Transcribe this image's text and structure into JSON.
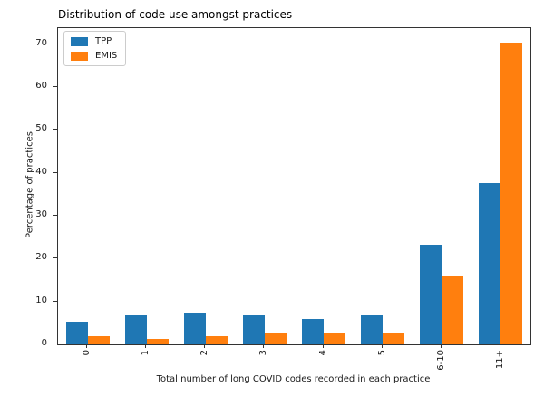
{
  "chart_data": {
    "type": "bar",
    "title": "Distribution of code use amongst practices",
    "xlabel": "Total number of long COVID codes recorded in each practice",
    "ylabel": "Percentage of practices",
    "categories": [
      "0",
      "1",
      "2",
      "3",
      "4",
      "5",
      "6-10",
      "11+"
    ],
    "series": [
      {
        "name": "TPP",
        "color": "#1f77b4",
        "values": [
          5.3,
          6.8,
          7.4,
          6.8,
          5.9,
          6.9,
          23.2,
          37.5
        ]
      },
      {
        "name": "EMIS",
        "color": "#ff7f0e",
        "values": [
          1.9,
          1.3,
          1.9,
          2.7,
          2.7,
          2.8,
          15.8,
          70.4
        ]
      }
    ],
    "ylim": [
      0,
      73.7
    ],
    "yticks": [
      0,
      10,
      20,
      30,
      40,
      50,
      60,
      70
    ],
    "legend_position": "upper left",
    "grid": false,
    "spine_color": "#333333",
    "background": "#ffffff"
  }
}
